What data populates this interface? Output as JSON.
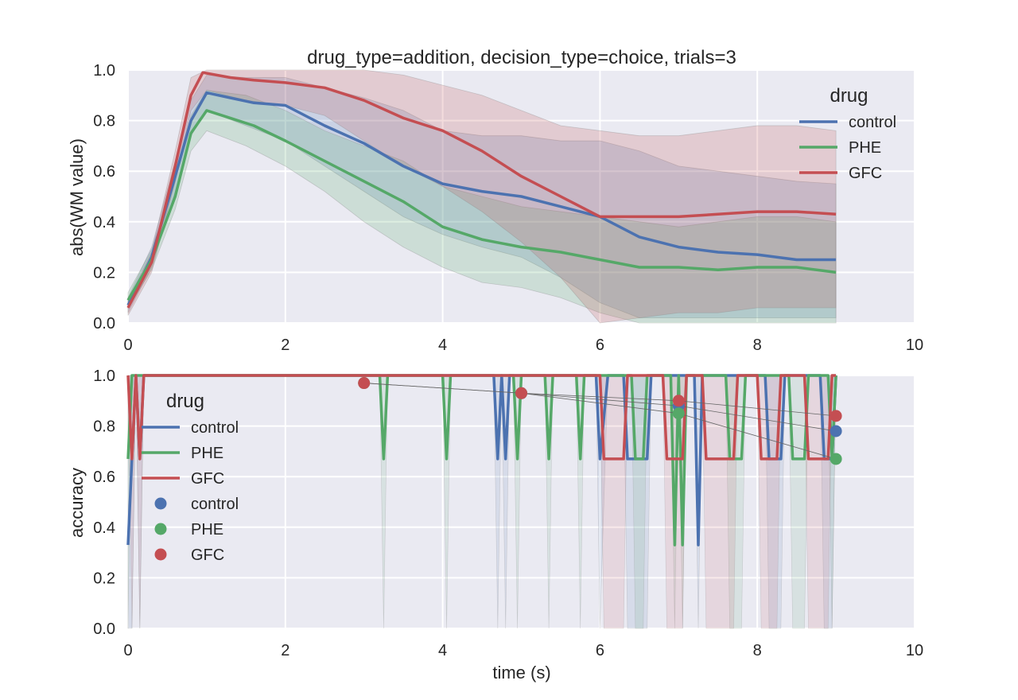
{
  "chart_data": [
    {
      "type": "line",
      "title": "drug_type=addition, decision_type=choice, trials=3",
      "xlabel": "",
      "ylabel": "abs(WM value)",
      "xlim": [
        0,
        10
      ],
      "ylim": [
        0,
        1.0
      ],
      "xticks": [
        "0",
        "2",
        "4",
        "6",
        "8",
        "10"
      ],
      "yticks": [
        "0.0",
        "0.2",
        "0.4",
        "0.6",
        "0.8",
        "1.0"
      ],
      "grid": true,
      "legend": {
        "title": "drug",
        "placement": "top-right",
        "entries": [
          "control",
          "PHE",
          "GFC"
        ]
      },
      "series": [
        {
          "name": "control",
          "color": "#4c72b0",
          "points": [
            [
              0,
              0.07
            ],
            [
              0.3,
              0.26
            ],
            [
              0.6,
              0.58
            ],
            [
              0.8,
              0.8
            ],
            [
              1.0,
              0.91
            ],
            [
              1.3,
              0.89
            ],
            [
              1.6,
              0.87
            ],
            [
              2.0,
              0.86
            ],
            [
              2.5,
              0.78
            ],
            [
              3.0,
              0.71
            ],
            [
              3.5,
              0.62
            ],
            [
              4.0,
              0.55
            ],
            [
              4.5,
              0.52
            ],
            [
              5.0,
              0.5
            ],
            [
              5.5,
              0.46
            ],
            [
              6.0,
              0.42
            ],
            [
              6.5,
              0.34
            ],
            [
              7.0,
              0.3
            ],
            [
              7.5,
              0.28
            ],
            [
              8.0,
              0.27
            ],
            [
              8.5,
              0.25
            ],
            [
              9.0,
              0.25
            ]
          ],
          "band": [
            [
              0,
              0.04,
              0.1
            ],
            [
              0.3,
              0.22,
              0.3
            ],
            [
              0.6,
              0.52,
              0.64
            ],
            [
              0.8,
              0.74,
              0.88
            ],
            [
              1.0,
              0.84,
              0.98
            ],
            [
              1.5,
              0.78,
              0.97
            ],
            [
              2.0,
              0.72,
              0.97
            ],
            [
              2.5,
              0.62,
              0.93
            ],
            [
              3.0,
              0.52,
              0.89
            ],
            [
              3.5,
              0.42,
              0.84
            ],
            [
              4.0,
              0.35,
              0.76
            ],
            [
              4.5,
              0.3,
              0.74
            ],
            [
              5.0,
              0.26,
              0.74
            ],
            [
              5.5,
              0.18,
              0.72
            ],
            [
              6.0,
              0.08,
              0.72
            ],
            [
              6.5,
              0.02,
              0.68
            ],
            [
              7.0,
              0.02,
              0.62
            ],
            [
              7.5,
              0.02,
              0.6
            ],
            [
              8.0,
              0.02,
              0.58
            ],
            [
              8.5,
              0.02,
              0.56
            ],
            [
              9.0,
              0.02,
              0.55
            ]
          ]
        },
        {
          "name": "PHE",
          "color": "#55a868",
          "points": [
            [
              0,
              0.09
            ],
            [
              0.3,
              0.25
            ],
            [
              0.6,
              0.5
            ],
            [
              0.8,
              0.75
            ],
            [
              1.0,
              0.84
            ],
            [
              1.3,
              0.81
            ],
            [
              1.6,
              0.78
            ],
            [
              2.0,
              0.72
            ],
            [
              2.5,
              0.64
            ],
            [
              3.0,
              0.56
            ],
            [
              3.5,
              0.48
            ],
            [
              4.0,
              0.38
            ],
            [
              4.5,
              0.33
            ],
            [
              5.0,
              0.3
            ],
            [
              5.5,
              0.28
            ],
            [
              6.0,
              0.25
            ],
            [
              6.5,
              0.22
            ],
            [
              7.0,
              0.22
            ],
            [
              7.5,
              0.21
            ],
            [
              8.0,
              0.22
            ],
            [
              8.5,
              0.22
            ],
            [
              9.0,
              0.2
            ]
          ],
          "band": [
            [
              0,
              0.06,
              0.12
            ],
            [
              0.3,
              0.21,
              0.29
            ],
            [
              0.6,
              0.45,
              0.56
            ],
            [
              0.8,
              0.68,
              0.82
            ],
            [
              1.0,
              0.76,
              0.92
            ],
            [
              1.5,
              0.7,
              0.9
            ],
            [
              2.0,
              0.62,
              0.84
            ],
            [
              2.5,
              0.52,
              0.76
            ],
            [
              3.0,
              0.4,
              0.7
            ],
            [
              3.5,
              0.3,
              0.64
            ],
            [
              4.0,
              0.22,
              0.54
            ],
            [
              4.5,
              0.16,
              0.5
            ],
            [
              5.0,
              0.14,
              0.46
            ],
            [
              5.5,
              0.1,
              0.44
            ],
            [
              6.0,
              0.04,
              0.42
            ],
            [
              6.5,
              0.0,
              0.4
            ],
            [
              7.0,
              0.0,
              0.38
            ],
            [
              7.5,
              0.0,
              0.4
            ],
            [
              8.0,
              0.0,
              0.42
            ],
            [
              8.5,
              0.0,
              0.42
            ],
            [
              9.0,
              0.0,
              0.4
            ]
          ]
        },
        {
          "name": "GFC",
          "color": "#c44e52",
          "points": [
            [
              0,
              0.06
            ],
            [
              0.3,
              0.24
            ],
            [
              0.6,
              0.62
            ],
            [
              0.8,
              0.9
            ],
            [
              0.95,
              0.99
            ],
            [
              1.3,
              0.97
            ],
            [
              1.6,
              0.96
            ],
            [
              2.0,
              0.95
            ],
            [
              2.5,
              0.93
            ],
            [
              3.0,
              0.88
            ],
            [
              3.5,
              0.81
            ],
            [
              4.0,
              0.76
            ],
            [
              4.5,
              0.68
            ],
            [
              5.0,
              0.58
            ],
            [
              5.5,
              0.5
            ],
            [
              6.0,
              0.42
            ],
            [
              6.5,
              0.42
            ],
            [
              7.0,
              0.42
            ],
            [
              7.5,
              0.43
            ],
            [
              8.0,
              0.44
            ],
            [
              8.5,
              0.44
            ],
            [
              9.0,
              0.43
            ]
          ],
          "band": [
            [
              0,
              0.03,
              0.09
            ],
            [
              0.3,
              0.2,
              0.28
            ],
            [
              0.6,
              0.56,
              0.68
            ],
            [
              0.8,
              0.84,
              0.97
            ],
            [
              1.0,
              0.92,
              1.0
            ],
            [
              1.5,
              0.88,
              1.0
            ],
            [
              2.0,
              0.86,
              1.0
            ],
            [
              2.5,
              0.82,
              1.0
            ],
            [
              3.0,
              0.72,
              1.0
            ],
            [
              3.5,
              0.62,
              0.98
            ],
            [
              4.0,
              0.54,
              0.94
            ],
            [
              4.5,
              0.44,
              0.9
            ],
            [
              5.0,
              0.32,
              0.84
            ],
            [
              5.5,
              0.18,
              0.78
            ],
            [
              6.0,
              0.0,
              0.76
            ],
            [
              6.5,
              0.02,
              0.74
            ],
            [
              7.0,
              0.04,
              0.74
            ],
            [
              7.5,
              0.04,
              0.76
            ],
            [
              8.0,
              0.06,
              0.78
            ],
            [
              8.5,
              0.06,
              0.78
            ],
            [
              9.0,
              0.06,
              0.76
            ]
          ]
        }
      ]
    },
    {
      "type": "line",
      "title": "",
      "xlabel": "time (s)",
      "ylabel": "accuracy",
      "xlim": [
        0,
        10
      ],
      "ylim": [
        0,
        1.0
      ],
      "xticks": [
        "0",
        "2",
        "4",
        "6",
        "8",
        "10"
      ],
      "yticks": [
        "0.0",
        "0.2",
        "0.4",
        "0.6",
        "0.8",
        "1.0"
      ],
      "grid": true,
      "legend": {
        "title": "drug",
        "placement": "top-left",
        "entries": [
          "control",
          "PHE",
          "GFC",
          "control",
          "PHE",
          "GFC"
        ]
      },
      "series": [
        {
          "name": "control",
          "color": "#4c72b0",
          "points": [
            [
              0,
              0.33
            ],
            [
              0.05,
              0.67
            ],
            [
              0.1,
              1.0
            ],
            [
              0.15,
              0.67
            ],
            [
              0.2,
              1.0
            ],
            [
              4.65,
              1.0
            ],
            [
              4.7,
              0.67
            ],
            [
              4.75,
              1.0
            ],
            [
              4.8,
              0.67
            ],
            [
              4.85,
              1.0
            ],
            [
              5.95,
              1.0
            ],
            [
              6.0,
              0.67
            ],
            [
              6.1,
              1.0
            ],
            [
              6.3,
              1.0
            ],
            [
              6.35,
              0.67
            ],
            [
              6.6,
              0.67
            ],
            [
              6.65,
              1.0
            ],
            [
              7.2,
              1.0
            ],
            [
              7.25,
              0.33
            ],
            [
              7.3,
              1.0
            ],
            [
              8.1,
              1.0
            ],
            [
              8.15,
              0.67
            ],
            [
              8.3,
              0.67
            ],
            [
              8.35,
              1.0
            ],
            [
              8.8,
              1.0
            ],
            [
              8.85,
              0.67
            ],
            [
              8.95,
              0.67
            ],
            [
              9.0,
              1.0
            ]
          ],
          "markers": [
            [
              5.0,
              0.93
            ],
            [
              7.0,
              0.88
            ],
            [
              9.0,
              0.78
            ]
          ]
        },
        {
          "name": "PHE",
          "color": "#55a868",
          "points": [
            [
              0,
              0.67
            ],
            [
              0.05,
              1.0
            ],
            [
              3.2,
              1.0
            ],
            [
              3.25,
              0.67
            ],
            [
              3.3,
              1.0
            ],
            [
              4.0,
              1.0
            ],
            [
              4.05,
              0.67
            ],
            [
              4.1,
              1.0
            ],
            [
              4.9,
              1.0
            ],
            [
              4.95,
              0.67
            ],
            [
              5.0,
              1.0
            ],
            [
              5.3,
              1.0
            ],
            [
              5.35,
              0.67
            ],
            [
              5.4,
              1.0
            ],
            [
              5.7,
              1.0
            ],
            [
              5.75,
              0.67
            ],
            [
              5.8,
              1.0
            ],
            [
              6.4,
              1.0
            ],
            [
              6.45,
              0.67
            ],
            [
              6.55,
              0.67
            ],
            [
              6.6,
              1.0
            ],
            [
              6.9,
              1.0
            ],
            [
              6.95,
              0.33
            ],
            [
              7.0,
              1.0
            ],
            [
              7.05,
              0.33
            ],
            [
              7.1,
              1.0
            ],
            [
              7.6,
              1.0
            ],
            [
              7.65,
              0.67
            ],
            [
              7.8,
              0.67
            ],
            [
              7.85,
              1.0
            ],
            [
              8.4,
              1.0
            ],
            [
              8.45,
              0.67
            ],
            [
              8.6,
              0.67
            ],
            [
              8.65,
              1.0
            ],
            [
              8.9,
              1.0
            ],
            [
              8.95,
              0.67
            ],
            [
              9.0,
              1.0
            ]
          ],
          "markers": [
            [
              3.0,
              0.97
            ],
            [
              5.0,
              0.93
            ],
            [
              7.0,
              0.85
            ],
            [
              9.0,
              0.67
            ]
          ]
        },
        {
          "name": "GFC",
          "color": "#c44e52",
          "points": [
            [
              0,
              1.0
            ],
            [
              0.05,
              0.67
            ],
            [
              0.1,
              1.0
            ],
            [
              0.15,
              0.67
            ],
            [
              0.2,
              1.0
            ],
            [
              6.0,
              1.0
            ],
            [
              6.05,
              0.67
            ],
            [
              6.3,
              0.67
            ],
            [
              6.35,
              1.0
            ],
            [
              6.8,
              1.0
            ],
            [
              6.85,
              0.67
            ],
            [
              7.05,
              0.67
            ],
            [
              7.1,
              1.0
            ],
            [
              7.3,
              1.0
            ],
            [
              7.35,
              0.67
            ],
            [
              7.7,
              0.67
            ],
            [
              7.75,
              1.0
            ],
            [
              8.0,
              1.0
            ],
            [
              8.05,
              0.67
            ],
            [
              8.25,
              0.67
            ],
            [
              8.3,
              1.0
            ],
            [
              8.6,
              1.0
            ],
            [
              8.65,
              0.67
            ],
            [
              8.9,
              0.67
            ],
            [
              8.95,
              1.0
            ],
            [
              9.0,
              1.0
            ]
          ],
          "markers": [
            [
              3.0,
              0.97
            ],
            [
              5.0,
              0.93
            ],
            [
              7.0,
              0.9
            ],
            [
              9.0,
              0.84
            ]
          ]
        }
      ]
    }
  ]
}
